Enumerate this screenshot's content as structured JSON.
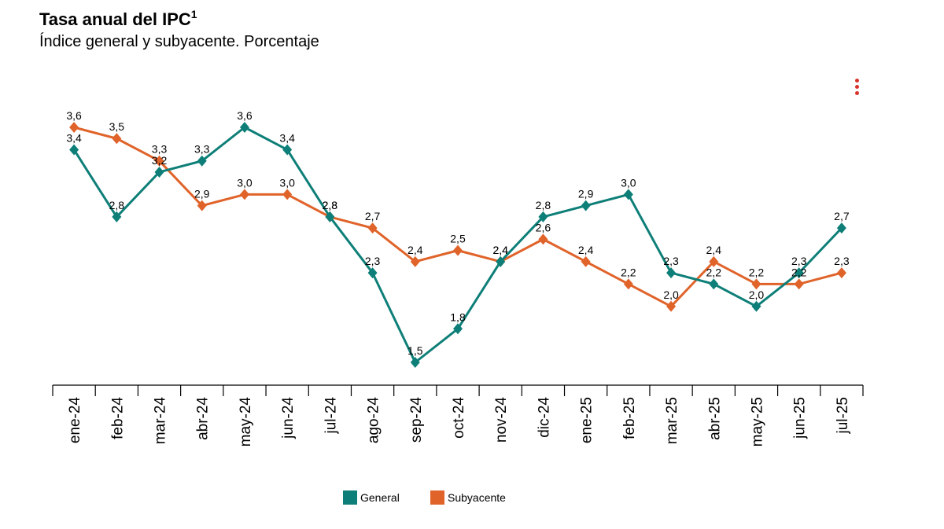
{
  "header": {
    "title": "Tasa anual del IPC",
    "title_sup": "1",
    "subtitle": "Índice general y subyacente. Porcentaje"
  },
  "colors": {
    "general": "#0e7f78",
    "subyacente": "#e0632a",
    "menu": "#d9342b"
  },
  "chart_data": {
    "type": "line",
    "title": "Tasa anual del IPC",
    "subtitle": "Índice general y subyacente. Porcentaje",
    "categories": [
      "ene-24",
      "feb-24",
      "mar-24",
      "abr-24",
      "may-24",
      "jun-24",
      "jul-24",
      "ago-24",
      "sep-24",
      "oct-24",
      "nov-24",
      "dic-24",
      "ene-25",
      "feb-25",
      "mar-25",
      "abr-25",
      "may-25",
      "jun-25",
      "jul-25"
    ],
    "series": [
      {
        "name": "General",
        "color": "#0e7f78",
        "values": [
          3.4,
          2.8,
          3.2,
          3.3,
          3.6,
          3.4,
          2.8,
          2.3,
          1.5,
          1.8,
          2.4,
          2.8,
          2.9,
          3.0,
          2.3,
          2.2,
          2.0,
          2.3,
          2.7
        ]
      },
      {
        "name": "Subyacente",
        "color": "#e0632a",
        "values": [
          3.6,
          3.5,
          3.3,
          2.9,
          3.0,
          3.0,
          2.8,
          2.7,
          2.4,
          2.5,
          2.4,
          2.6,
          2.4,
          2.2,
          2.0,
          2.4,
          2.2,
          2.2,
          2.3
        ]
      }
    ],
    "ylim": [
      1.0,
      4.0
    ],
    "grid": false,
    "legend": "bottom-center",
    "xlabel": "",
    "ylabel": ""
  },
  "legend": {
    "general_label": "General",
    "subyacente_label": "Subyacente"
  }
}
